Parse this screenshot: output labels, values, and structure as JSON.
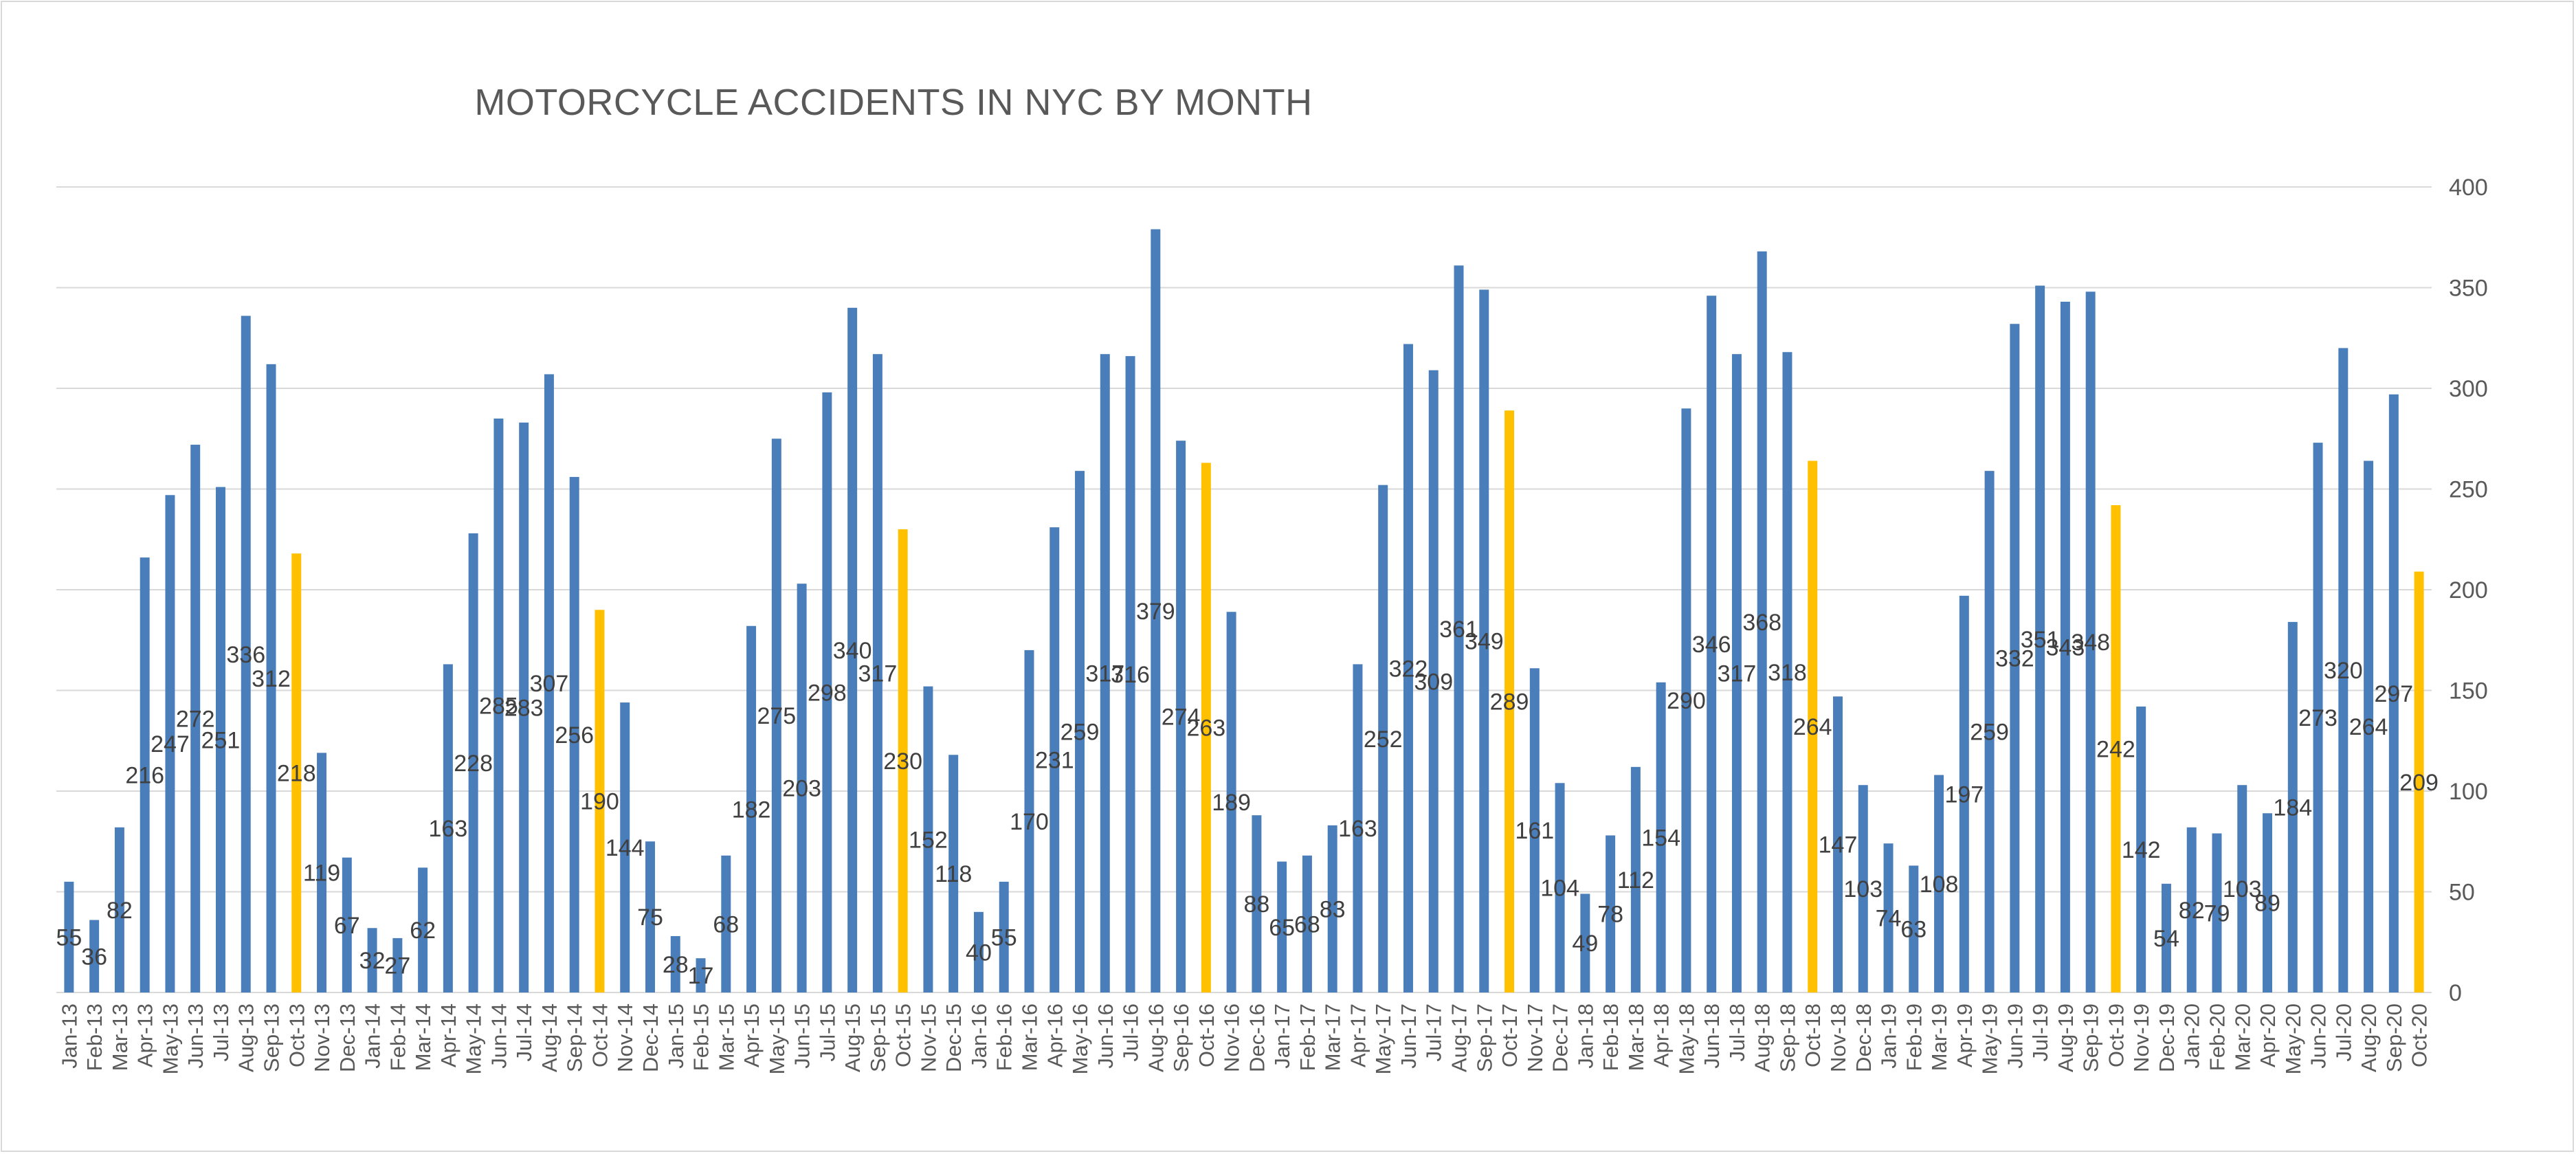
{
  "chart_data": {
    "type": "bar",
    "title": "MOTORCYCLE ACCIDENTS IN NYC BY MONTH",
    "xlabel": "",
    "ylabel": "",
    "ylim": [
      0,
      400
    ],
    "yticks": [
      0,
      50,
      100,
      150,
      200,
      250,
      300,
      350,
      400
    ],
    "y_axis_position": "right",
    "grid": true,
    "legend": "none",
    "colors": {
      "default": "#4a7ebb",
      "october": "#ffc000",
      "grid": "#d9d9d9",
      "text": "#595959"
    },
    "categories": [
      "Jan-13",
      "Feb-13",
      "Mar-13",
      "Apr-13",
      "May-13",
      "Jun-13",
      "Jul-13",
      "Aug-13",
      "Sep-13",
      "Oct-13",
      "Nov-13",
      "Dec-13",
      "Jan-14",
      "Feb-14",
      "Mar-14",
      "Apr-14",
      "May-14",
      "Jun-14",
      "Jul-14",
      "Aug-14",
      "Sep-14",
      "Oct-14",
      "Nov-14",
      "Dec-14",
      "Jan-15",
      "Feb-15",
      "Mar-15",
      "Apr-15",
      "May-15",
      "Jun-15",
      "Jul-15",
      "Aug-15",
      "Sep-15",
      "Oct-15",
      "Nov-15",
      "Dec-15",
      "Jan-16",
      "Feb-16",
      "Mar-16",
      "Apr-16",
      "May-16",
      "Jun-16",
      "Jul-16",
      "Aug-16",
      "Sep-16",
      "Oct-16",
      "Nov-16",
      "Dec-16",
      "Jan-17",
      "Feb-17",
      "Mar-17",
      "Apr-17",
      "May-17",
      "Jun-17",
      "Jul-17",
      "Aug-17",
      "Sep-17",
      "Oct-17",
      "Nov-17",
      "Dec-17",
      "Jan-18",
      "Feb-18",
      "Mar-18",
      "Apr-18",
      "May-18",
      "Jun-18",
      "Jul-18",
      "Aug-18",
      "Sep-18",
      "Oct-18",
      "Nov-18",
      "Dec-18",
      "Jan-19",
      "Feb-19",
      "Mar-19",
      "Apr-19",
      "May-19",
      "Jun-19",
      "Jul-19",
      "Aug-19",
      "Sep-19",
      "Oct-19",
      "Nov-19",
      "Dec-19",
      "Jan-20",
      "Feb-20",
      "Mar-20",
      "Apr-20",
      "May-20",
      "Jun-20",
      "Jul-20",
      "Aug-20",
      "Sep-20",
      "Oct-20"
    ],
    "values": [
      55,
      36,
      82,
      216,
      247,
      272,
      251,
      336,
      312,
      218,
      119,
      67,
      32,
      27,
      62,
      163,
      228,
      285,
      283,
      307,
      256,
      190,
      144,
      75,
      28,
      17,
      68,
      182,
      275,
      203,
      298,
      340,
      317,
      230,
      152,
      118,
      40,
      55,
      170,
      231,
      259,
      317,
      316,
      379,
      274,
      263,
      189,
      88,
      65,
      68,
      83,
      163,
      252,
      322,
      309,
      361,
      349,
      289,
      161,
      104,
      49,
      78,
      112,
      154,
      290,
      346,
      317,
      368,
      318,
      264,
      147,
      103,
      74,
      63,
      108,
      197,
      259,
      332,
      351,
      343,
      348,
      242,
      142,
      54,
      82,
      79,
      103,
      89,
      184,
      273,
      320,
      264,
      297,
      209
    ],
    "highlighted_categories": [
      "Oct-13",
      "Oct-14",
      "Oct-15",
      "Oct-16",
      "Oct-17",
      "Oct-18",
      "Oct-19",
      "Oct-20"
    ]
  }
}
